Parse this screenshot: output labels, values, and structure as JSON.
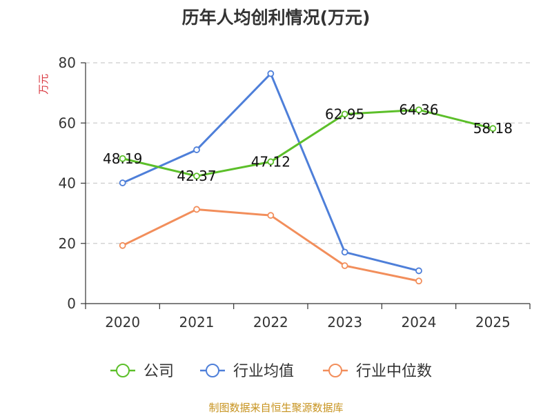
{
  "chart_data": {
    "type": "line",
    "title": "历年人均创利情况(万元)",
    "ylabel": "万元",
    "xlabel": "",
    "categories": [
      "2020",
      "2021",
      "2022",
      "2023",
      "2024",
      "2025"
    ],
    "ylim": [
      0,
      80
    ],
    "yticks": [
      0,
      20,
      40,
      60,
      80
    ],
    "grid": true,
    "legend_position": "bottom",
    "series": [
      {
        "name": "公司",
        "color": "#5cbf2a",
        "values": [
          48.19,
          42.37,
          47.12,
          62.95,
          64.36,
          58.18
        ],
        "labels": [
          "48.19",
          "42.37",
          "47.12",
          "62.95",
          "64.36",
          "58.18"
        ],
        "show_labels": true
      },
      {
        "name": "行业均值",
        "color": "#4e7fd9",
        "values": [
          40.1,
          51.1,
          76.4,
          17.1,
          10.9,
          null
        ],
        "show_labels": false
      },
      {
        "name": "行业中位数",
        "color": "#f28e5b",
        "values": [
          19.3,
          31.3,
          29.3,
          12.6,
          7.5,
          null
        ],
        "show_labels": false
      }
    ],
    "source": "制图数据来自恒生聚源数据库"
  }
}
